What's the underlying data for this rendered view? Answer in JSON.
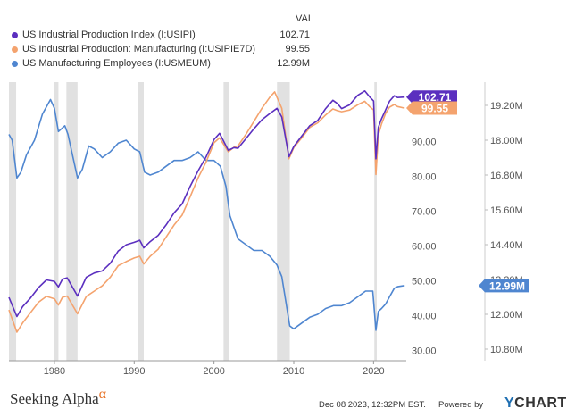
{
  "legend": {
    "header": "VAL",
    "rows": [
      {
        "name": "US Industrial Production Index (I:USIPI)",
        "value": "102.71",
        "color": "#5b2fbf"
      },
      {
        "name": "US Industrial Production: Manufacturing (I:USIPIE7D)",
        "value": "99.55",
        "color": "#f4a36e"
      },
      {
        "name": "US Manufacturing Employees (I:USMEUM)",
        "value": "12.99M",
        "color": "#4f86d0"
      }
    ]
  },
  "chart_data": {
    "type": "line",
    "x_range": [
      1974.3,
      2024.1
    ],
    "x_ticks": [
      "1980",
      "1990",
      "2000",
      "2010",
      "2020"
    ],
    "left_axis": {
      "ticks": [
        "30.00",
        "40.00",
        "50.00",
        "60.00",
        "70.00",
        "80.00",
        "90.00"
      ],
      "range": [
        27,
        107
      ]
    },
    "right_axis": {
      "ticks": [
        "10.80M",
        "12.00M",
        "13.20M",
        "14.40M",
        "15.60M",
        "16.80M",
        "18.00M",
        "19.20M"
      ],
      "range": [
        10.4,
        20.0
      ]
    },
    "recessions": [
      [
        1973.9,
        1975.2
      ],
      [
        1980.0,
        1980.5
      ],
      [
        1981.5,
        1982.9
      ],
      [
        1990.5,
        1991.2
      ],
      [
        2001.2,
        2001.9
      ],
      [
        2007.9,
        2009.5
      ],
      [
        2020.1,
        2020.4
      ]
    ],
    "series": [
      {
        "name": "US Industrial Production Index (I:USIPI)",
        "axis": "left",
        "color": "#5b2fbf",
        "end_label": "102.71",
        "points": [
          [
            1974.3,
            45.2
          ],
          [
            1975.3,
            39.7
          ],
          [
            1976.0,
            42.5
          ],
          [
            1977.0,
            45.0
          ],
          [
            1978.0,
            48.0
          ],
          [
            1979.0,
            50.2
          ],
          [
            1980.0,
            49.8
          ],
          [
            1980.5,
            48.2
          ],
          [
            1981.0,
            50.4
          ],
          [
            1981.6,
            50.8
          ],
          [
            1982.9,
            45.6
          ],
          [
            1984.0,
            51.0
          ],
          [
            1985.0,
            52.2
          ],
          [
            1986.0,
            52.8
          ],
          [
            1987.0,
            55.0
          ],
          [
            1988.0,
            58.5
          ],
          [
            1989.0,
            60.3
          ],
          [
            1990.0,
            61.0
          ],
          [
            1990.7,
            61.6
          ],
          [
            1991.2,
            59.4
          ],
          [
            1992.0,
            61.2
          ],
          [
            1993.0,
            63.0
          ],
          [
            1994.0,
            66.0
          ],
          [
            1995.0,
            69.5
          ],
          [
            1996.0,
            72.0
          ],
          [
            1997.0,
            77.0
          ],
          [
            1998.0,
            81.5
          ],
          [
            1999.0,
            85.5
          ],
          [
            2000.0,
            90.5
          ],
          [
            2000.7,
            92.3
          ],
          [
            2001.8,
            87.4
          ],
          [
            2002.5,
            88.2
          ],
          [
            2003.0,
            88.0
          ],
          [
            2004.0,
            90.8
          ],
          [
            2005.0,
            93.6
          ],
          [
            2006.0,
            96.2
          ],
          [
            2007.0,
            98.0
          ],
          [
            2007.9,
            99.5
          ],
          [
            2008.5,
            97.0
          ],
          [
            2009.4,
            85.6
          ],
          [
            2010.0,
            88.5
          ],
          [
            2011.0,
            91.5
          ],
          [
            2012.0,
            94.5
          ],
          [
            2013.0,
            96.0
          ],
          [
            2014.0,
            99.4
          ],
          [
            2014.9,
            101.8
          ],
          [
            2015.5,
            100.8
          ],
          [
            2016.0,
            99.4
          ],
          [
            2017.0,
            100.5
          ],
          [
            2018.0,
            103.2
          ],
          [
            2018.9,
            104.5
          ],
          [
            2019.5,
            102.8
          ],
          [
            2020.0,
            101.6
          ],
          [
            2020.3,
            85.0
          ],
          [
            2020.6,
            94.0
          ],
          [
            2021.0,
            96.5
          ],
          [
            2021.5,
            99.0
          ],
          [
            2022.0,
            101.5
          ],
          [
            2022.6,
            103.1
          ],
          [
            2023.0,
            102.6
          ],
          [
            2023.9,
            102.71
          ]
        ]
      },
      {
        "name": "US Industrial Production: Manufacturing (I:USIPIE7D)",
        "axis": "left",
        "color": "#f4a36e",
        "end_label": "99.55",
        "points": [
          [
            1974.3,
            41.6
          ],
          [
            1975.3,
            35.2
          ],
          [
            1976.0,
            37.8
          ],
          [
            1977.0,
            40.8
          ],
          [
            1978.0,
            43.8
          ],
          [
            1979.0,
            45.5
          ],
          [
            1980.0,
            44.8
          ],
          [
            1980.5,
            43.0
          ],
          [
            1981.0,
            45.2
          ],
          [
            1981.6,
            45.6
          ],
          [
            1982.9,
            40.5
          ],
          [
            1984.0,
            45.5
          ],
          [
            1985.0,
            47.0
          ],
          [
            1986.0,
            48.5
          ],
          [
            1987.0,
            51.0
          ],
          [
            1988.0,
            54.3
          ],
          [
            1989.0,
            55.5
          ],
          [
            1990.0,
            56.5
          ],
          [
            1990.7,
            57.0
          ],
          [
            1991.2,
            54.8
          ],
          [
            1992.0,
            57.0
          ],
          [
            1993.0,
            59.0
          ],
          [
            1994.0,
            62.5
          ],
          [
            1995.0,
            66.0
          ],
          [
            1996.0,
            68.8
          ],
          [
            1997.0,
            74.0
          ],
          [
            1998.0,
            79.5
          ],
          [
            1999.0,
            84.0
          ],
          [
            2000.0,
            89.6
          ],
          [
            2000.7,
            91.0
          ],
          [
            2001.8,
            87.0
          ],
          [
            2002.5,
            88.3
          ],
          [
            2003.0,
            88.7
          ],
          [
            2004.0,
            92.0
          ],
          [
            2005.0,
            95.7
          ],
          [
            2006.0,
            99.5
          ],
          [
            2007.0,
            102.7
          ],
          [
            2007.6,
            104.2
          ],
          [
            2008.5,
            99.5
          ],
          [
            2009.4,
            85.0
          ],
          [
            2010.0,
            88.2
          ],
          [
            2011.0,
            91.0
          ],
          [
            2012.0,
            94.0
          ],
          [
            2013.0,
            95.3
          ],
          [
            2014.0,
            97.6
          ],
          [
            2014.9,
            99.3
          ],
          [
            2015.5,
            98.8
          ],
          [
            2016.0,
            98.5
          ],
          [
            2017.0,
            99.0
          ],
          [
            2018.0,
            100.5
          ],
          [
            2018.9,
            101.5
          ],
          [
            2019.5,
            100.0
          ],
          [
            2020.0,
            99.0
          ],
          [
            2020.3,
            80.5
          ],
          [
            2020.6,
            91.8
          ],
          [
            2021.0,
            95.0
          ],
          [
            2021.5,
            98.0
          ],
          [
            2022.0,
            99.8
          ],
          [
            2022.6,
            100.6
          ],
          [
            2023.0,
            100.0
          ],
          [
            2023.9,
            99.55
          ]
        ]
      },
      {
        "name": "US Manufacturing Employees (I:USMEUM)",
        "axis": "right",
        "color": "#4f86d0",
        "end_label": "12.99M",
        "points": [
          [
            1974.3,
            18.2
          ],
          [
            1974.7,
            18.0
          ],
          [
            1975.3,
            16.7
          ],
          [
            1975.8,
            16.9
          ],
          [
            1976.5,
            17.5
          ],
          [
            1977.5,
            18.0
          ],
          [
            1978.5,
            18.9
          ],
          [
            1979.5,
            19.4
          ],
          [
            1980.0,
            19.1
          ],
          [
            1980.5,
            18.3
          ],
          [
            1981.3,
            18.5
          ],
          [
            1981.7,
            18.2
          ],
          [
            1982.9,
            16.7
          ],
          [
            1983.5,
            17.0
          ],
          [
            1984.3,
            17.8
          ],
          [
            1985.0,
            17.7
          ],
          [
            1986.0,
            17.4
          ],
          [
            1987.0,
            17.6
          ],
          [
            1988.0,
            17.9
          ],
          [
            1989.0,
            18.0
          ],
          [
            1990.0,
            17.7
          ],
          [
            1990.7,
            17.6
          ],
          [
            1991.3,
            16.9
          ],
          [
            1992.0,
            16.8
          ],
          [
            1993.0,
            16.9
          ],
          [
            1994.0,
            17.1
          ],
          [
            1995.0,
            17.3
          ],
          [
            1996.0,
            17.3
          ],
          [
            1997.0,
            17.4
          ],
          [
            1998.0,
            17.6
          ],
          [
            1999.0,
            17.3
          ],
          [
            2000.0,
            17.3
          ],
          [
            2000.8,
            17.1
          ],
          [
            2001.5,
            16.4
          ],
          [
            2002.0,
            15.4
          ],
          [
            2003.0,
            14.6
          ],
          [
            2004.0,
            14.4
          ],
          [
            2005.0,
            14.2
          ],
          [
            2006.0,
            14.2
          ],
          [
            2007.0,
            14.0
          ],
          [
            2007.9,
            13.7
          ],
          [
            2008.5,
            13.3
          ],
          [
            2009.5,
            11.6
          ],
          [
            2010.0,
            11.5
          ],
          [
            2011.0,
            11.7
          ],
          [
            2012.0,
            11.9
          ],
          [
            2013.0,
            12.0
          ],
          [
            2014.0,
            12.2
          ],
          [
            2015.0,
            12.3
          ],
          [
            2016.0,
            12.3
          ],
          [
            2017.0,
            12.4
          ],
          [
            2018.0,
            12.6
          ],
          [
            2019.0,
            12.8
          ],
          [
            2019.9,
            12.8
          ],
          [
            2020.3,
            11.45
          ],
          [
            2020.6,
            12.1
          ],
          [
            2021.0,
            12.2
          ],
          [
            2021.5,
            12.35
          ],
          [
            2022.0,
            12.6
          ],
          [
            2022.6,
            12.9
          ],
          [
            2023.0,
            12.95
          ],
          [
            2023.9,
            12.99
          ]
        ]
      }
    ]
  },
  "footer": {
    "brand": "Seeking Alpha",
    "brand_symbol": "α",
    "date": "Dec 08 2023, 12:32PM EST.",
    "powered": "Powered by",
    "ycharts_y": "Y",
    "ycharts_rest": "CHARTS"
  }
}
